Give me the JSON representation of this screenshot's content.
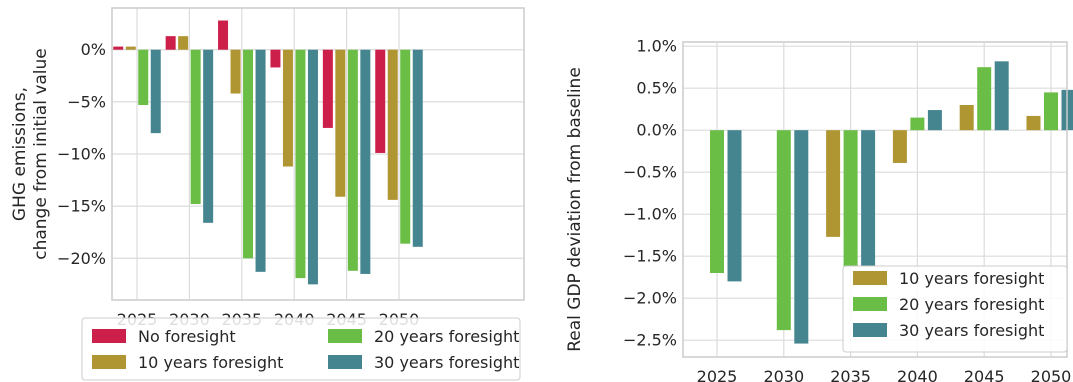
{
  "chart_data": [
    {
      "type": "bar",
      "categories": [
        "2025",
        "2030",
        "2035",
        "2040",
        "2045",
        "2050"
      ],
      "ylabel": [
        "GHG emissions,",
        "change from initial value"
      ],
      "xlabel": "",
      "ylim": [
        -24,
        4
      ],
      "yticks": [
        0,
        -5,
        -10,
        -15,
        -20
      ],
      "ytick_labels": [
        "0%",
        "−5%",
        "−10%",
        "−15%",
        "−20%"
      ],
      "grid": true,
      "legend": "bottom",
      "series": [
        {
          "name": "No foresight",
          "color": "#cc1f4a",
          "values": [
            0.3,
            1.3,
            2.8,
            -1.7,
            -7.5,
            -9.9
          ]
        },
        {
          "name": "10 years foresight",
          "color": "#b09632",
          "values": [
            0.3,
            1.3,
            -4.2,
            -11.2,
            -14.1,
            -14.4
          ]
        },
        {
          "name": "20 years foresight",
          "color": "#6abd45",
          "values": [
            -5.3,
            -14.8,
            -20.0,
            -21.9,
            -21.2,
            -18.6
          ]
        },
        {
          "name": "30 years foresight",
          "color": "#458590",
          "values": [
            -8.0,
            -16.6,
            -21.3,
            -22.5,
            -21.5,
            -18.9
          ]
        }
      ]
    },
    {
      "type": "bar",
      "categories": [
        "2025",
        "2030",
        "2035",
        "2040",
        "2045",
        "2050"
      ],
      "ylabel": "Real GDP deviation from baseline",
      "xlabel": "",
      "ylim": [
        -2.7,
        1.05
      ],
      "yticks": [
        1.0,
        0.5,
        0.0,
        -0.5,
        -1.0,
        -1.5,
        -2.0,
        -2.5
      ],
      "ytick_labels": [
        "1.0%",
        "0.5%",
        "0.0%",
        "−0.5%",
        "−1.0%",
        "−1.5%",
        "−2.0%",
        "−2.5%"
      ],
      "grid": true,
      "legend": "bottom-right",
      "series": [
        {
          "name": "10 years foresight",
          "color": "#b09632",
          "values": [
            0.0,
            0.0,
            -1.27,
            -0.39,
            0.3,
            0.17
          ]
        },
        {
          "name": "20 years foresight",
          "color": "#6abd45",
          "values": [
            -1.7,
            -2.38,
            -1.62,
            0.15,
            0.75,
            0.45
          ]
        },
        {
          "name": "30 years foresight",
          "color": "#458590",
          "values": [
            -1.8,
            -2.54,
            -1.62,
            0.24,
            0.82,
            0.48
          ]
        }
      ]
    }
  ]
}
